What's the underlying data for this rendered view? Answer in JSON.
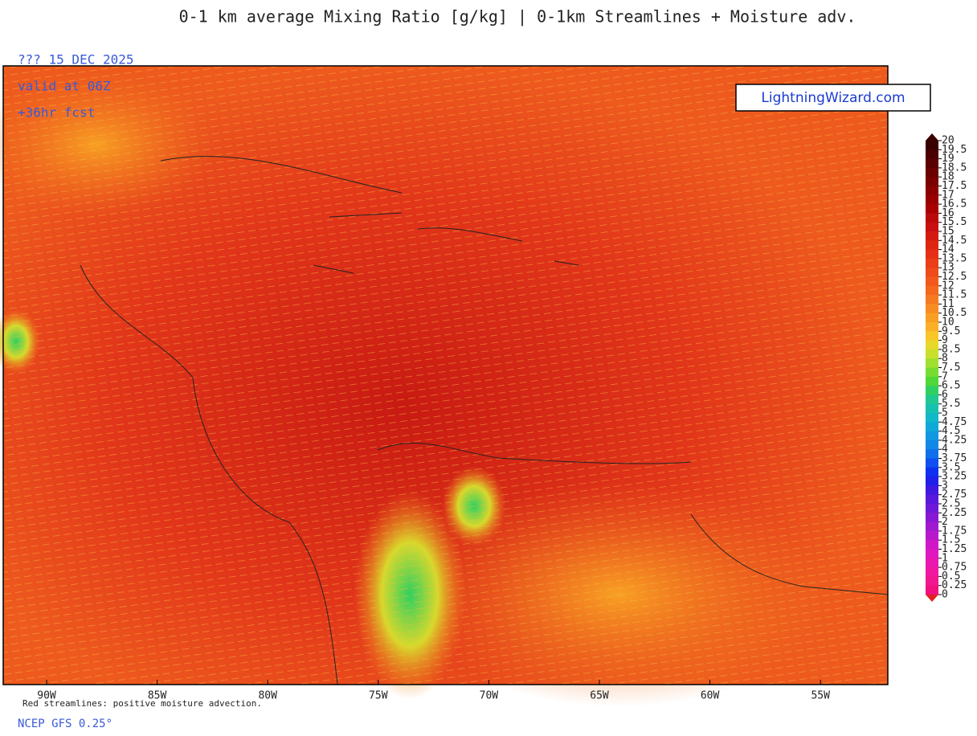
{
  "header": {
    "title": "0-1 km average Mixing Ratio [g/kg] | 0-1km Streamlines + Moisture adv.",
    "date": "??? 15 DEC 2025",
    "valid": "valid at 06Z",
    "forecast": "+36hr fcst"
  },
  "watermark": "LightningWizard.com",
  "map": {
    "longitude_labels": [
      "90W",
      "85W",
      "80W",
      "75W",
      "70W",
      "65W",
      "60W",
      "55W"
    ]
  },
  "colorbar": {
    "levels": [
      20,
      19.5,
      19,
      18.5,
      18,
      17.5,
      17,
      16.5,
      16,
      15.5,
      15,
      14.5,
      14,
      13.5,
      13,
      12.5,
      12,
      11.5,
      11,
      10.5,
      10,
      9.5,
      9,
      8.5,
      8,
      7.5,
      7,
      6.5,
      6,
      5.5,
      5,
      4.75,
      4.5,
      4.25,
      4,
      3.75,
      3.5,
      3.25,
      3,
      2.75,
      2.5,
      2.25,
      2,
      1.75,
      1.5,
      1.25,
      1,
      0.75,
      0.5,
      0.25,
      0
    ],
    "colors": [
      "#3a0000",
      "#4a0000",
      "#5a0000",
      "#6a0000",
      "#7a0000",
      "#8a0000",
      "#9a0000",
      "#aa0000",
      "#bb0a0a",
      "#c81010",
      "#d41a10",
      "#dd2510",
      "#e53015",
      "#ea3d18",
      "#ee4a1a",
      "#f2581c",
      "#f4681e",
      "#f67a20",
      "#f88c22",
      "#f99e24",
      "#fab026",
      "#f8c628",
      "#e8d82a",
      "#c8e02c",
      "#a0e030",
      "#78dc30",
      "#50d838",
      "#30d060",
      "#20c890",
      "#18c0b0",
      "#10b8c8",
      "#10a8d8",
      "#1098e0",
      "#1088e8",
      "#1070ec",
      "#1050f0",
      "#1030f0",
      "#2020e8",
      "#4018e0",
      "#5a18dc",
      "#7018d8",
      "#8818d4",
      "#a018d0",
      "#b818cc",
      "#d018c8",
      "#e018c0",
      "#e818b0",
      "#f018a0",
      "#f01890",
      "#f01080"
    ]
  },
  "footer": {
    "note": "Red streamlines: positive moisture advection.",
    "source": "NCEP GFS 0.25°"
  }
}
